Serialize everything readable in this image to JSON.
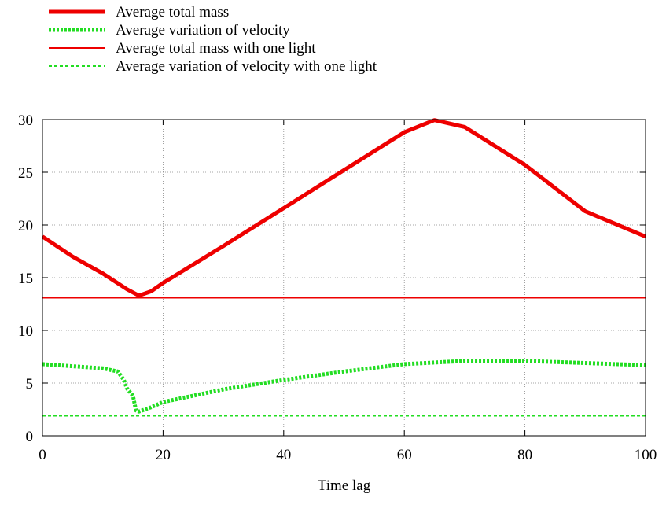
{
  "chart_data": {
    "type": "line",
    "title": "",
    "xlabel": "Time lag",
    "ylabel": "",
    "xlim": [
      0,
      100
    ],
    "ylim": [
      0,
      30
    ],
    "xticks": [
      0,
      20,
      40,
      60,
      80,
      100
    ],
    "yticks": [
      0,
      5,
      10,
      15,
      20,
      25,
      30
    ],
    "grid": true,
    "legend_position": "top-left",
    "series": [
      {
        "name": "Average total mass",
        "color": "#ee0000",
        "style": "thick-solid",
        "points": [
          [
            0,
            18.9
          ],
          [
            5,
            17.0
          ],
          [
            10,
            15.4
          ],
          [
            14,
            13.9
          ],
          [
            16,
            13.3
          ],
          [
            18,
            13.7
          ],
          [
            20,
            14.5
          ],
          [
            30,
            18.0
          ],
          [
            40,
            21.6
          ],
          [
            50,
            25.2
          ],
          [
            60,
            28.8
          ],
          [
            65,
            29.95
          ],
          [
            70,
            29.3
          ],
          [
            80,
            25.7
          ],
          [
            90,
            21.3
          ],
          [
            100,
            18.9
          ]
        ]
      },
      {
        "name": "Average variation of velocity",
        "color": "#22dd22",
        "style": "thick-dotted",
        "points": [
          [
            0,
            6.8
          ],
          [
            5,
            6.6
          ],
          [
            10,
            6.4
          ],
          [
            12.5,
            6.1
          ],
          [
            13.5,
            5.3
          ],
          [
            14,
            4.5
          ],
          [
            15,
            3.8
          ],
          [
            15.5,
            2.4
          ],
          [
            16,
            2.3
          ],
          [
            18,
            2.7
          ],
          [
            20,
            3.2
          ],
          [
            30,
            4.4
          ],
          [
            40,
            5.3
          ],
          [
            50,
            6.1
          ],
          [
            60,
            6.8
          ],
          [
            70,
            7.1
          ],
          [
            80,
            7.1
          ],
          [
            90,
            6.9
          ],
          [
            100,
            6.7
          ]
        ]
      },
      {
        "name": "Average total mass with one light",
        "color": "#ee0000",
        "style": "thin-solid",
        "points": [
          [
            0,
            13.1
          ],
          [
            100,
            13.1
          ]
        ]
      },
      {
        "name": "Average variation of velocity with one light",
        "color": "#22dd22",
        "style": "thin-dashed",
        "points": [
          [
            0,
            1.9
          ],
          [
            100,
            1.9
          ]
        ]
      }
    ]
  }
}
